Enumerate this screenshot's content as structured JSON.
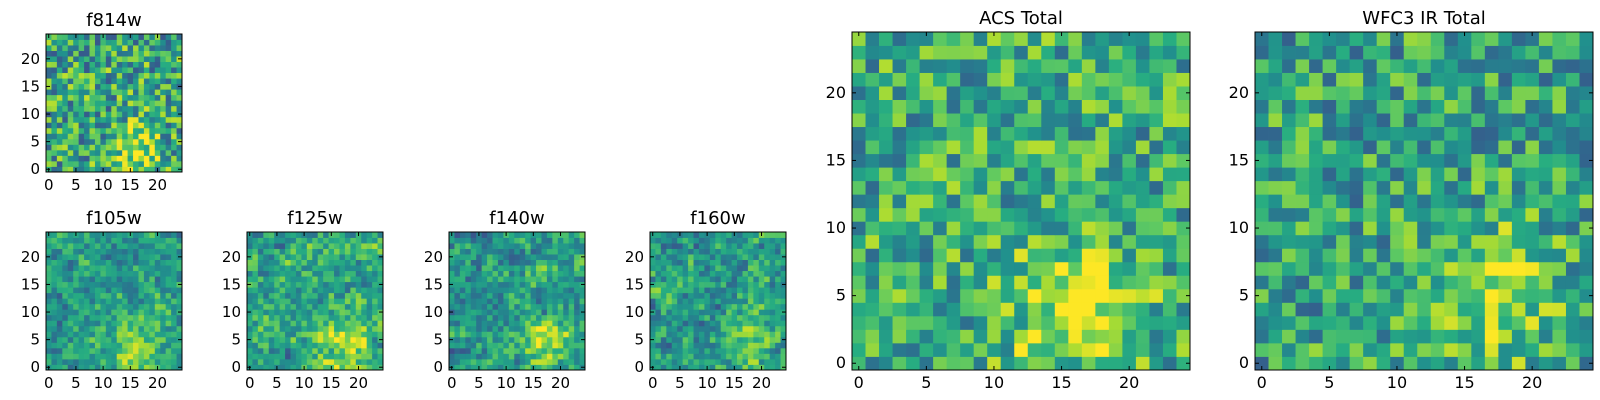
{
  "chart_data": [
    {
      "type": "heatmap",
      "title": "f814w",
      "xlabel": "",
      "ylabel": "",
      "xlim": [
        -0.5,
        24.5
      ],
      "ylim": [
        -0.5,
        24.5
      ],
      "xticks": [
        0,
        5,
        10,
        15,
        20
      ],
      "yticks": [
        0,
        5,
        10,
        15,
        20
      ],
      "colormap": "viridis",
      "cells": 25,
      "hot_spot": [
        16,
        4
      ],
      "hot_spread": 3.0,
      "hot_strength": 0.35,
      "base_level": 0.6,
      "noise_amplitude": 0.65,
      "seed": 814
    },
    {
      "type": "heatmap",
      "title": "f105w",
      "xlabel": "",
      "ylabel": "",
      "xlim": [
        -0.5,
        24.5
      ],
      "ylim": [
        -0.5,
        24.5
      ],
      "xticks": [
        0,
        5,
        10,
        15,
        20
      ],
      "yticks": [
        0,
        5,
        10,
        15,
        20
      ],
      "colormap": "viridis",
      "cells": 25,
      "hot_spot": [
        16,
        4
      ],
      "hot_spread": 3.5,
      "hot_strength": 0.3,
      "base_level": 0.55,
      "noise_amplitude": 0.55,
      "smoothing": 1,
      "seed": 105
    },
    {
      "type": "heatmap",
      "title": "f125w",
      "xlabel": "",
      "ylabel": "",
      "xlim": [
        -0.5,
        24.5
      ],
      "ylim": [
        -0.5,
        24.5
      ],
      "xticks": [
        0,
        5,
        10,
        15,
        20
      ],
      "yticks": [
        0,
        5,
        10,
        15,
        20
      ],
      "colormap": "viridis",
      "cells": 25,
      "hot_spot": [
        17,
        4
      ],
      "hot_spread": 3.5,
      "hot_strength": 0.3,
      "base_level": 0.6,
      "noise_amplitude": 0.6,
      "smoothing": 1,
      "seed": 125
    },
    {
      "type": "heatmap",
      "title": "f140w",
      "xlabel": "",
      "ylabel": "",
      "xlim": [
        -0.5,
        24.5
      ],
      "ylim": [
        -0.5,
        24.5
      ],
      "xticks": [
        0,
        5,
        10,
        15,
        20
      ],
      "yticks": [
        0,
        5,
        10,
        15,
        20
      ],
      "colormap": "viridis",
      "cells": 25,
      "hot_spot": [
        17,
        4
      ],
      "hot_spread": 3.5,
      "hot_strength": 0.3,
      "base_level": 0.55,
      "noise_amplitude": 0.6,
      "smoothing": 1,
      "seed": 140
    },
    {
      "type": "heatmap",
      "title": "f160w",
      "xlabel": "",
      "ylabel": "",
      "xlim": [
        -0.5,
        24.5
      ],
      "ylim": [
        -0.5,
        24.5
      ],
      "xticks": [
        0,
        5,
        10,
        15,
        20
      ],
      "yticks": [
        0,
        5,
        10,
        15,
        20
      ],
      "colormap": "viridis",
      "cells": 25,
      "hot_spot": [
        17,
        4
      ],
      "hot_spread": 3.5,
      "hot_strength": 0.3,
      "base_level": 0.55,
      "noise_amplitude": 0.6,
      "smoothing": 1,
      "seed": 160
    },
    {
      "type": "heatmap",
      "title": "ACS Total",
      "xlabel": "",
      "ylabel": "",
      "xlim": [
        -0.5,
        24.5
      ],
      "ylim": [
        -0.5,
        24.5
      ],
      "xticks": [
        0,
        5,
        10,
        15,
        20
      ],
      "yticks": [
        0,
        5,
        10,
        15,
        20
      ],
      "colormap": "viridis",
      "cells": 25,
      "hot_spot": [
        16,
        4
      ],
      "hot_spread": 3.5,
      "hot_strength": 0.3,
      "base_level": 0.62,
      "noise_amplitude": 0.55,
      "seed": 1001
    },
    {
      "type": "heatmap",
      "title": "WFC3 IR Total",
      "xlabel": "",
      "ylabel": "",
      "xlim": [
        -0.5,
        24.5
      ],
      "ylim": [
        -0.5,
        24.5
      ],
      "xticks": [
        0,
        5,
        10,
        15,
        20
      ],
      "yticks": [
        0,
        5,
        10,
        15,
        20
      ],
      "colormap": "viridis",
      "cells": 25,
      "hot_spot": [
        17,
        5
      ],
      "hot_spread": 3.5,
      "hot_strength": 0.3,
      "base_level": 0.58,
      "noise_amplitude": 0.55,
      "seed": 2002
    }
  ]
}
